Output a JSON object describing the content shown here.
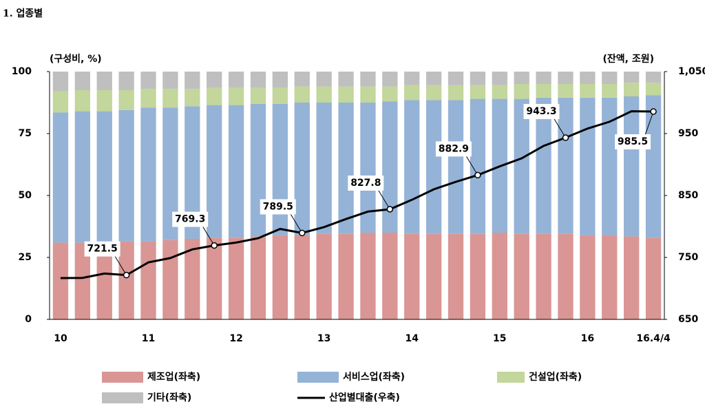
{
  "chart_data": {
    "type": "stacked_bar_line",
    "title": "1. 업종별",
    "y_label": "(구성비, %)",
    "y2_label": "(잔액, 조원)",
    "categories": [
      "10",
      null,
      null,
      null,
      "11",
      null,
      null,
      null,
      "12",
      null,
      null,
      null,
      "13",
      null,
      null,
      null,
      "14",
      null,
      null,
      null,
      "15",
      null,
      null,
      null,
      "16",
      null,
      null,
      "16.4/4"
    ],
    "ylim": [
      0,
      100
    ],
    "yticks": [
      0,
      25,
      50,
      75,
      100
    ],
    "y2lim": [
      650,
      1050
    ],
    "y2ticks": [
      650,
      750,
      850,
      950,
      {
        "value": 1050,
        "label": "1,050"
      }
    ],
    "series": [
      {
        "name": "제조업(좌축)",
        "color": "#d99694",
        "values": [
          31,
          31,
          31,
          31.5,
          31.5,
          32,
          32.5,
          33,
          33,
          33.5,
          34,
          34,
          34.5,
          34.5,
          35,
          35,
          34.5,
          34.5,
          34.5,
          34.5,
          35,
          34.5,
          34.5,
          34.5,
          34,
          34,
          33.5,
          33
        ]
      },
      {
        "name": "서비스업(좌축)",
        "color": "#95b3d7",
        "values": [
          52.5,
          53,
          53,
          53,
          54,
          53.5,
          53.5,
          53.5,
          53.5,
          53.5,
          53,
          53.5,
          53,
          53,
          52.5,
          53,
          54,
          54,
          54,
          54.5,
          54,
          54.5,
          55,
          55,
          55.5,
          55.5,
          56.5,
          57.5
        ]
      },
      {
        "name": "건설업(좌축)",
        "color": "#c3d69b",
        "values": [
          8.5,
          8.5,
          8.5,
          8,
          7.5,
          7.5,
          7,
          7,
          7,
          6.5,
          6.5,
          6.5,
          6.5,
          6.5,
          6.5,
          6,
          6,
          6,
          6,
          5.5,
          5.5,
          6,
          5.5,
          5.5,
          5.5,
          5.5,
          5.5,
          5
        ]
      },
      {
        "name": "기타(좌축)",
        "color": "#bfbfbf",
        "values": [
          8,
          7.5,
          7.5,
          7.5,
          7,
          7,
          7,
          6.5,
          6.5,
          6.5,
          6.5,
          6,
          6,
          6,
          6,
          6,
          5.5,
          5.5,
          5.5,
          5.5,
          5.5,
          5,
          5,
          5,
          5,
          5,
          4.5,
          4.5
        ]
      },
      {
        "name": "산업별대출(우축)",
        "color": "#000000",
        "axis": "y2",
        "type": "line",
        "values": [
          716.7,
          717,
          724,
          721.5,
          742,
          749,
          763,
          769.3,
          774,
          781,
          796,
          789.5,
          799,
          812,
          824,
          827.8,
          843,
          860,
          872,
          882.9,
          897,
          910,
          930,
          943.3,
          958,
          969,
          986,
          985.5
        ],
        "value_labels": [
          null,
          null,
          null,
          "721.5",
          null,
          null,
          null,
          "769.3",
          null,
          null,
          null,
          "789.5",
          null,
          null,
          null,
          "827.8",
          null,
          null,
          null,
          "882.9",
          null,
          null,
          null,
          "943.3",
          null,
          null,
          null,
          "985.5"
        ]
      }
    ]
  }
}
